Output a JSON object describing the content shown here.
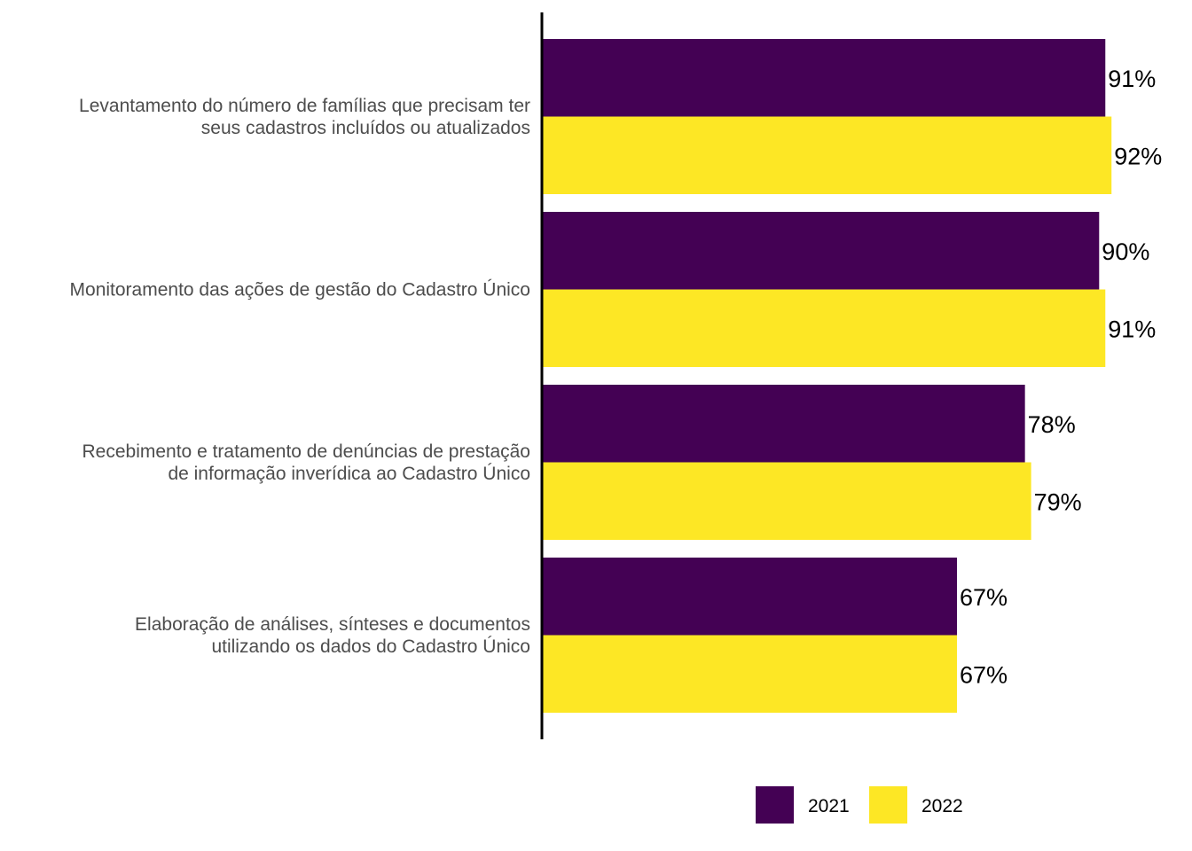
{
  "chart_data": {
    "type": "bar",
    "orientation": "horizontal",
    "categories": [
      [
        "Levantamento do número de famílias que precisam ter",
        "seus cadastros incluídos ou atualizados"
      ],
      [
        "Monitoramento das ações de gestão do Cadastro Único"
      ],
      [
        "Recebimento e tratamento de denúncias de prestação",
        "de informação inverídica ao Cadastro Único"
      ],
      [
        "Elaboração de análises, sínteses e documentos",
        "utilizando os dados do Cadastro Único"
      ]
    ],
    "series": [
      {
        "name": "2021",
        "color": "#440154",
        "values": [
          91,
          90,
          78,
          67
        ],
        "labels": [
          "91%",
          "90%",
          "78%",
          "67%"
        ]
      },
      {
        "name": "2022",
        "color": "#FDE725",
        "values": [
          92,
          91,
          79,
          67
        ],
        "labels": [
          "92%",
          "91%",
          "79%",
          "67%"
        ]
      }
    ],
    "xlim": [
      0,
      100
    ],
    "grid": false,
    "legend_position": "bottom"
  }
}
